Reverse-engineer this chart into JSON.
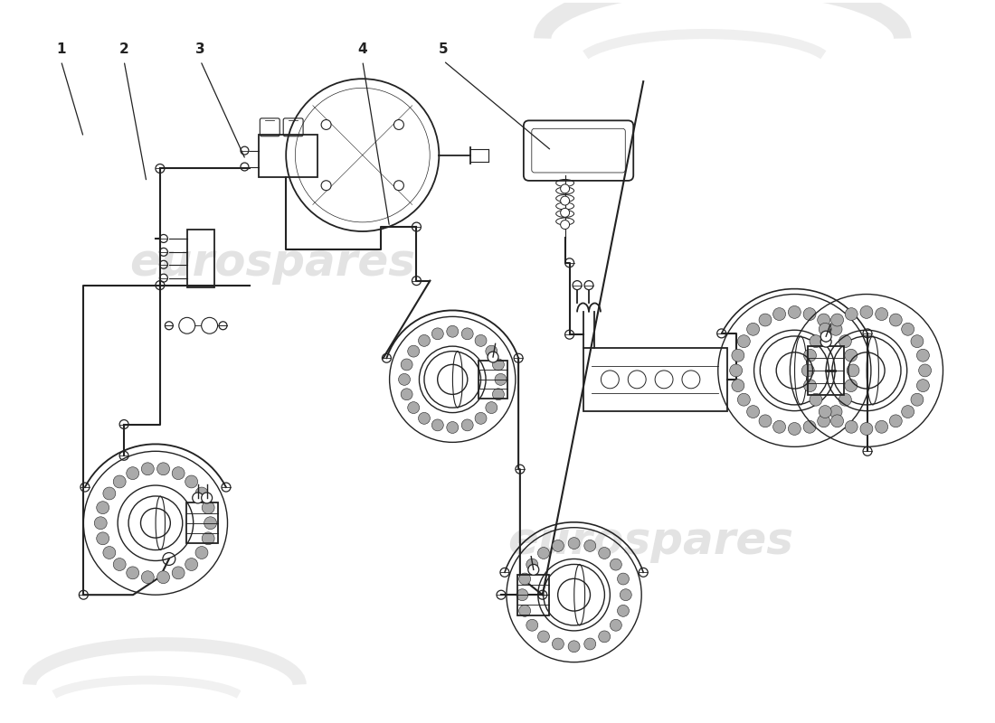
{
  "background_color": "#ffffff",
  "line_color": "#222222",
  "watermark_color": "#d5d5d5",
  "watermark": "eurospares",
  "part_labels": [
    "1",
    "2",
    "3",
    "4",
    "5"
  ],
  "lw_main": 1.3,
  "lw_thin": 0.8,
  "lw_line": 1.5
}
